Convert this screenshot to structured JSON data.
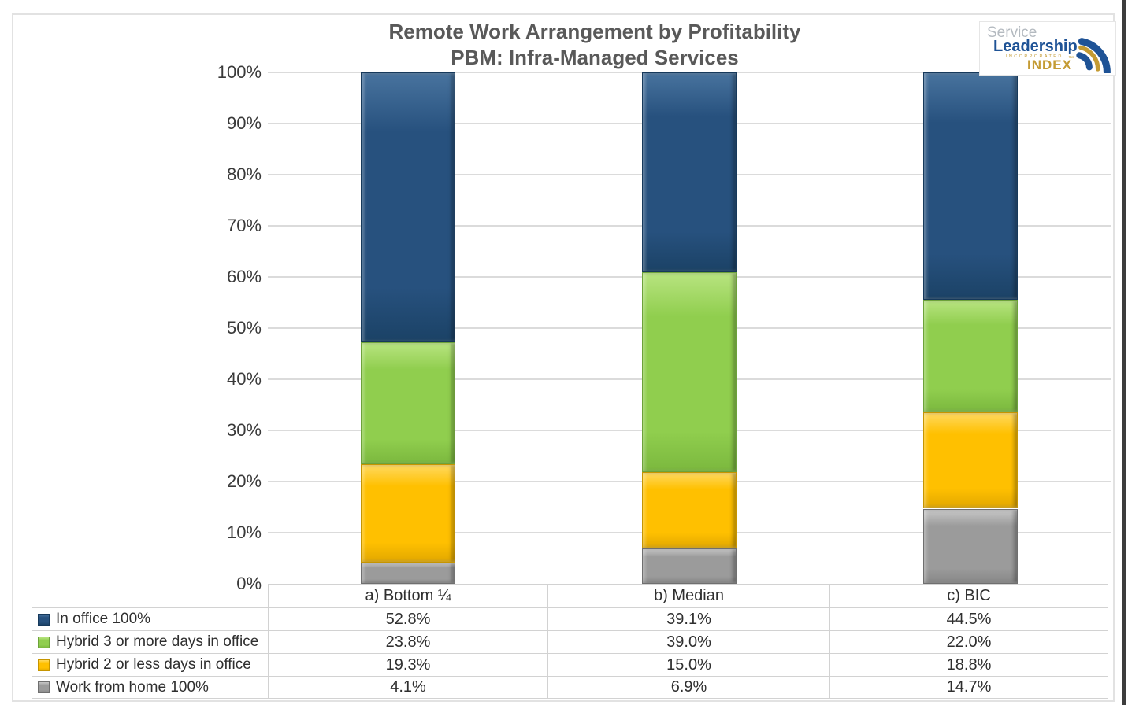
{
  "window": {
    "background": "#ffffff"
  },
  "chart_data": {
    "type": "bar",
    "stacked": true,
    "title": "Remote Work Arrangement by Profitability",
    "subtitle": "PBM: Infra-Managed Services",
    "categories": [
      "a) Bottom ¼",
      "b) Median",
      "c) BIC"
    ],
    "series": [
      {
        "name": "In office 100%",
        "color": "#27517E",
        "edge": "#16395B",
        "light": "#48739E",
        "dark": "#1B4266",
        "values": [
          52.8,
          39.1,
          44.5
        ]
      },
      {
        "name": "Hybrid 3 or more days in office",
        "color": "#90CE4E",
        "edge": "#6DA23A",
        "light": "#B8E480",
        "dark": "#7BB83E",
        "values": [
          23.8,
          39.0,
          22.0
        ]
      },
      {
        "name": "Hybrid 2 or less days in office",
        "color": "#FFC000",
        "edge": "#C69500",
        "light": "#FFD95F",
        "dark": "#E2A800",
        "values": [
          19.3,
          15.0,
          18.8
        ]
      },
      {
        "name": "Work from home 100%",
        "color": "#9B9B9B",
        "edge": "#6F6F6F",
        "light": "#C8C8C8",
        "dark": "#878787",
        "values": [
          4.1,
          6.9,
          14.7
        ]
      }
    ],
    "ylim": [
      0,
      100
    ],
    "ytick_step": 10,
    "ytick_suffix": "%",
    "value_suffix": "%",
    "grid": "horizontal-only",
    "legend_position": "table-rows-left",
    "gridline_color": "#dbdbdb"
  },
  "logo": {
    "word_top": "Service",
    "word_main": "Leadership",
    "word_small": "INCORPORATED",
    "word_index": "INDEX",
    "trademark": "™",
    "color_navy": "#1F5396",
    "color_gold": "#C49B33",
    "color_gray": "#B4BAC0"
  }
}
